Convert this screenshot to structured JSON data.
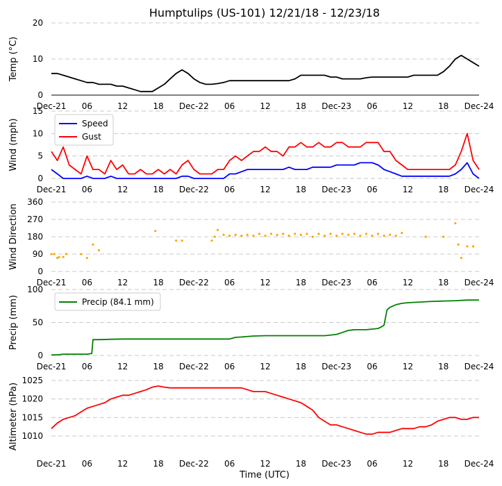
{
  "chart_data": {
    "type": "line",
    "title": "Humptulips (US-101) 12/21/18 - 12/23/18",
    "xlabel": "Time (UTC)",
    "x_ticks_hours": [
      0,
      6,
      12,
      18,
      24,
      30,
      36,
      42,
      48,
      54,
      60,
      66,
      72
    ],
    "x_tick_labels": [
      "Dec-21",
      "06",
      "12",
      "18",
      "Dec-22",
      "06",
      "12",
      "18",
      "Dec-23",
      "06",
      "12",
      "18",
      "Dec-24"
    ],
    "xlim_hours": [
      0,
      72
    ],
    "panels": [
      {
        "id": "temp",
        "ylabel": "Temp (°C)",
        "ylim": [
          0,
          20
        ],
        "yticks": [
          0,
          10,
          20
        ],
        "series": [
          {
            "name": "Temperature",
            "color": "#000000",
            "x": [
              0,
              1,
              2,
              3,
              4,
              5,
              6,
              7,
              8,
              9,
              10,
              11,
              12,
              13,
              14,
              15,
              16,
              17,
              18,
              19,
              20,
              21,
              22,
              23,
              24,
              25,
              26,
              27,
              28,
              29,
              30,
              31,
              32,
              33,
              34,
              35,
              36,
              37,
              38,
              39,
              40,
              41,
              42,
              43,
              44,
              45,
              46,
              47,
              48,
              49,
              50,
              51,
              52,
              53,
              54,
              55,
              56,
              57,
              58,
              59,
              60,
              61,
              62,
              63,
              64,
              65,
              66,
              67,
              68,
              69,
              70,
              71,
              72
            ],
            "y": [
              6,
              6,
              5.5,
              5,
              4.5,
              4,
              3.5,
              3.5,
              3,
              3,
              3,
              2.5,
              2.5,
              2,
              1.5,
              1,
              1,
              1,
              2,
              3,
              4.5,
              6,
              7,
              6,
              4.5,
              3.5,
              3,
              3,
              3.2,
              3.5,
              4,
              4,
              4,
              4,
              4,
              4,
              4,
              4,
              4,
              4,
              4,
              4.5,
              5.5,
              5.5,
              5.5,
              5.5,
              5.5,
              5,
              5,
              4.5,
              4.5,
              4.5,
              4.5,
              4.8,
              5,
              5,
              5,
              5,
              5,
              5,
              5,
              5.5,
              5.5,
              5.5,
              5.5,
              5.5,
              6.5,
              8,
              10,
              11,
              10,
              9,
              8
            ]
          }
        ]
      },
      {
        "id": "wind",
        "ylabel": "Wind (mph)",
        "ylim": [
          0,
          15
        ],
        "yticks": [
          0,
          5,
          10,
          15
        ],
        "legend": {
          "position": "top-left"
        },
        "series": [
          {
            "name": "Speed",
            "color": "#0000ff",
            "x": [
              0,
              1,
              2,
              3,
              4,
              5,
              6,
              7,
              8,
              9,
              10,
              11,
              12,
              13,
              14,
              15,
              16,
              17,
              18,
              19,
              20,
              21,
              22,
              23,
              24,
              25,
              26,
              27,
              28,
              29,
              30,
              31,
              32,
              33,
              34,
              35,
              36,
              37,
              38,
              39,
              40,
              41,
              42,
              43,
              44,
              45,
              46,
              47,
              48,
              49,
              50,
              51,
              52,
              53,
              54,
              55,
              56,
              57,
              58,
              59,
              60,
              61,
              62,
              63,
              64,
              65,
              66,
              67,
              68,
              69,
              70,
              71,
              72
            ],
            "y": [
              2,
              1,
              0,
              0,
              0,
              0,
              0.5,
              0,
              0,
              0,
              0.5,
              0,
              0,
              0,
              0,
              0,
              0,
              0,
              0,
              0,
              0,
              0,
              0.5,
              0.5,
              0,
              0,
              0,
              0,
              0,
              0,
              1,
              1,
              1.5,
              2,
              2,
              2,
              2,
              2,
              2,
              2,
              2.5,
              2,
              2,
              2,
              2.5,
              2.5,
              2.5,
              2.5,
              3,
              3,
              3,
              3,
              3.5,
              3.5,
              3.5,
              3,
              2,
              1.5,
              1,
              0.5,
              0.5,
              0.5,
              0.5,
              0.5,
              0.5,
              0.5,
              0.5,
              0.5,
              1,
              2,
              3.5,
              1,
              0
            ]
          },
          {
            "name": "Gust",
            "color": "#ff0000",
            "x": [
              0,
              1,
              2,
              3,
              4,
              5,
              6,
              7,
              8,
              9,
              10,
              11,
              12,
              13,
              14,
              15,
              16,
              17,
              18,
              19,
              20,
              21,
              22,
              23,
              24,
              25,
              26,
              27,
              28,
              29,
              30,
              31,
              32,
              33,
              34,
              35,
              36,
              37,
              38,
              39,
              40,
              41,
              42,
              43,
              44,
              45,
              46,
              47,
              48,
              49,
              50,
              51,
              52,
              53,
              54,
              55,
              56,
              57,
              58,
              59,
              60,
              61,
              62,
              63,
              64,
              65,
              66,
              67,
              68,
              69,
              70,
              71,
              72
            ],
            "y": [
              6,
              4,
              7,
              3,
              2,
              1,
              5,
              2,
              2,
              1,
              4,
              2,
              3,
              1,
              1,
              2,
              1,
              1,
              2,
              1,
              2,
              1,
              3,
              4,
              2,
              1,
              1,
              1,
              2,
              2,
              4,
              5,
              4,
              5,
              6,
              6,
              7,
              6,
              6,
              5,
              7,
              7,
              8,
              7,
              7,
              8,
              7,
              7,
              8,
              8,
              7,
              7,
              7,
              8,
              8,
              8,
              6,
              6,
              4,
              3,
              2,
              2,
              2,
              2,
              2,
              2,
              2,
              2,
              3,
              6,
              10,
              4,
              2
            ]
          }
        ]
      },
      {
        "id": "dir",
        "ylabel": "Wind Direction",
        "ylim": [
          0,
          360
        ],
        "yticks": [
          0,
          90,
          180,
          270,
          360
        ],
        "series": [
          {
            "name": "Direction",
            "color": "#ffa500",
            "x": [
              0,
              0.5,
              1,
              1.3,
              2,
              2.5,
              5,
              6,
              7,
              8,
              17.5,
              21,
              22,
              27,
              27.5,
              28,
              29,
              30,
              31,
              32,
              33,
              34,
              35,
              36,
              37,
              38,
              39,
              40,
              41,
              42,
              43,
              44,
              45,
              46,
              47,
              48,
              49,
              50,
              51,
              52,
              53,
              54,
              55,
              56,
              57,
              58,
              59,
              63,
              66,
              68,
              68.5,
              69,
              70,
              71
            ],
            "y": [
              90,
              90,
              70,
              75,
              75,
              90,
              90,
              70,
              140,
              110,
              210,
              160,
              160,
              160,
              180,
              215,
              190,
              185,
              190,
              185,
              190,
              185,
              195,
              185,
              195,
              190,
              195,
              185,
              195,
              190,
              195,
              180,
              195,
              185,
              195,
              185,
              195,
              190,
              195,
              185,
              195,
              185,
              195,
              185,
              190,
              185,
              200,
              180,
              180,
              250,
              140,
              70,
              130,
              130
            ]
          }
        ]
      },
      {
        "id": "precip",
        "ylabel": "Precip (mm)",
        "ylim": [
          0,
          100
        ],
        "yticks": [
          0,
          50,
          100
        ],
        "legend": {
          "position": "top-left"
        },
        "series": [
          {
            "name": "Precip (84.1 mm)",
            "color": "#008000",
            "x": [
              0,
              1,
              2,
              3,
              4,
              5,
              6,
              6.8,
              7,
              8,
              10,
              12,
              14,
              16,
              18,
              20,
              22,
              24,
              26,
              28,
              30,
              31,
              32,
              34,
              36,
              38,
              40,
              42,
              44,
              46,
              47,
              48,
              49,
              50,
              51,
              52,
              53,
              54,
              55,
              55.5,
              56,
              56.5,
              57,
              58,
              59,
              60,
              62,
              64,
              66,
              68,
              70,
              72
            ],
            "y": [
              1,
              1,
              2,
              2,
              2,
              2,
              2,
              3,
              24,
              24,
              24.5,
              25,
              25,
              25,
              25,
              25,
              25,
              25,
              25,
              25,
              25,
              27.5,
              28,
              29.5,
              30,
              30,
              30,
              30,
              30,
              30,
              31,
              32,
              35,
              38,
              39,
              39,
              39,
              40,
              41,
              43,
              46,
              69,
              73,
              77,
              79,
              80,
              81,
              82,
              82.5,
              83,
              84,
              84.1
            ]
          }
        ]
      },
      {
        "id": "alt",
        "ylabel": "Altimeter (hPa)",
        "ylim": [
          1005.5,
          1025
        ],
        "yticks": [
          1010,
          1015,
          1020,
          1025
        ],
        "series": [
          {
            "name": "Altimeter",
            "color": "#ff0000",
            "x": [
              0,
              1,
              2,
              3,
              4,
              5,
              6,
              7,
              8,
              9,
              10,
              11,
              12,
              13,
              14,
              15,
              16,
              17,
              18,
              19,
              20,
              21,
              22,
              23,
              24,
              25,
              26,
              27,
              28,
              29,
              30,
              31,
              32,
              33,
              34,
              35,
              36,
              37,
              38,
              39,
              40,
              41,
              42,
              43,
              44,
              45,
              46,
              47,
              48,
              49,
              50,
              51,
              52,
              53,
              54,
              55,
              56,
              57,
              58,
              59,
              60,
              61,
              62,
              63,
              64,
              65,
              66,
              67,
              68,
              69,
              70,
              71,
              72
            ],
            "y": [
              1012,
              1013.5,
              1014.5,
              1015,
              1015.5,
              1016.5,
              1017.5,
              1018,
              1018.5,
              1019,
              1020,
              1020.5,
              1021,
              1021,
              1021.5,
              1022,
              1022.5,
              1023.2,
              1023.5,
              1023.2,
              1023,
              1023,
              1023,
              1023,
              1023,
              1023,
              1023,
              1023,
              1023,
              1023,
              1023,
              1023,
              1023,
              1022.5,
              1022,
              1022,
              1022,
              1021.5,
              1021,
              1020.5,
              1020,
              1019.5,
              1019,
              1018,
              1017,
              1015,
              1014,
              1013,
              1013,
              1012.5,
              1012,
              1011.5,
              1011,
              1010.5,
              1010.5,
              1011,
              1011,
              1011,
              1011.5,
              1012,
              1012,
              1012,
              1012.5,
              1012.5,
              1013,
              1014,
              1014.5,
              1015,
              1015,
              1014.5,
              1014.5,
              1015,
              1015
            ]
          }
        ]
      }
    ]
  }
}
